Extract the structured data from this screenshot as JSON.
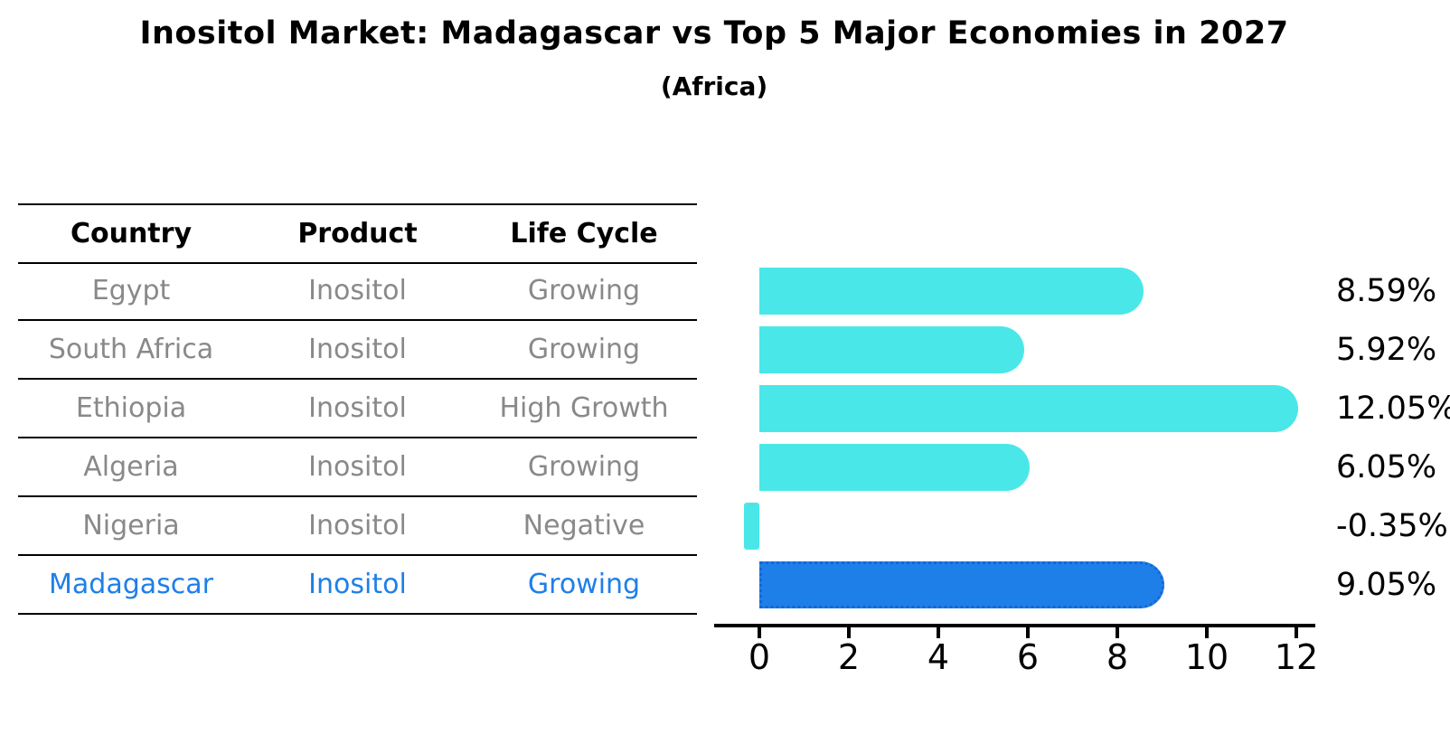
{
  "title": "Inositol Market: Madagascar vs Top 5 Major Economies in 2027",
  "subtitle": "(Africa)",
  "table": {
    "headers": [
      "Country",
      "Product",
      "Life Cycle"
    ],
    "rows": [
      {
        "country": "Egypt",
        "product": "Inositol",
        "life_cycle": "Growing",
        "highlight": false
      },
      {
        "country": "South Africa",
        "product": "Inositol",
        "life_cycle": "Growing",
        "highlight": false
      },
      {
        "country": "Ethiopia",
        "product": "Inositol",
        "life_cycle": "High Growth",
        "highlight": false
      },
      {
        "country": "Algeria",
        "product": "Inositol",
        "life_cycle": "Growing",
        "highlight": false
      },
      {
        "country": "Nigeria",
        "product": "Inositol",
        "life_cycle": "Negative",
        "highlight": false
      },
      {
        "country": "Madagascar",
        "product": "Inositol",
        "life_cycle": "Growing",
        "highlight": true
      }
    ]
  },
  "chart_data": {
    "type": "bar",
    "orientation": "horizontal",
    "title": "Inositol Market: Madagascar vs Top 5 Major Economies in 2027",
    "subtitle": "(Africa)",
    "categories": [
      "Egypt",
      "South Africa",
      "Ethiopia",
      "Algeria",
      "Nigeria",
      "Madagascar"
    ],
    "values": [
      8.59,
      5.92,
      12.05,
      6.05,
      -0.35,
      9.05
    ],
    "value_labels": [
      "8.59%",
      "5.92%",
      "12.05%",
      "6.05%",
      "-0.35%",
      "9.05%"
    ],
    "x_ticks": [
      0,
      2,
      4,
      6,
      8,
      10,
      12
    ],
    "x_tick_labels": [
      "0",
      "2",
      "4",
      "6",
      "8",
      "10",
      "12"
    ],
    "xlim": [
      -1.0,
      12.4
    ],
    "grid": false,
    "legend": false,
    "highlight_index": 5,
    "bar_color": "#4AE7E8",
    "highlight_color": "#1E7FE8",
    "highlight_border_color": "#1566D6",
    "axis_color": "#000000",
    "label_color": "#000000",
    "table_text_color": "#898989",
    "highlight_text_color": "#1E7FE8"
  }
}
